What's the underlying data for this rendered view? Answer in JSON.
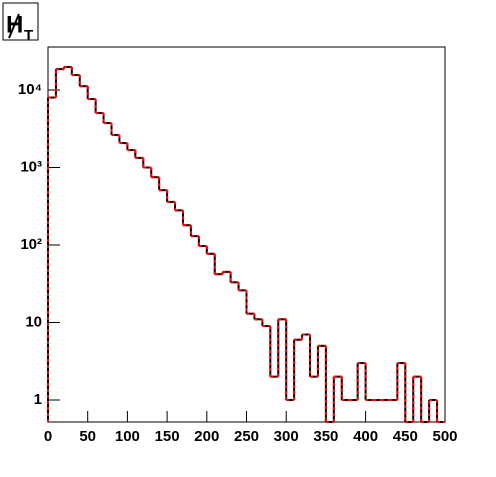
{
  "chart_data": {
    "type": "histogram",
    "title": {
      "main": "H",
      "subscript": "T"
    },
    "bins": [
      0,
      10,
      20,
      30,
      40,
      50,
      60,
      70,
      80,
      90,
      100,
      110,
      120,
      130,
      140,
      150,
      160,
      170,
      180,
      190,
      200,
      210,
      220,
      230,
      240,
      250,
      260,
      270,
      280,
      290,
      300,
      310,
      320,
      330,
      340,
      350,
      360,
      370,
      380,
      390,
      400,
      410,
      420,
      430,
      440,
      450,
      460,
      470,
      480,
      490,
      500
    ],
    "series": [
      {
        "color": "#000000",
        "values": [
          8000,
          18600,
          19800,
          15600,
          11200,
          7650,
          5050,
          3750,
          2630,
          2070,
          1680,
          1330,
          1000,
          750,
          510,
          360,
          280,
          180,
          130,
          97,
          77,
          42,
          45,
          33,
          26,
          13,
          11,
          9,
          2,
          11,
          1,
          6,
          7,
          2,
          5,
          0,
          2,
          1,
          1,
          3,
          1,
          1,
          1,
          1,
          3,
          0,
          2,
          0,
          1,
          0
        ]
      },
      {
        "color": "#ff0000",
        "dashed": true,
        "values": [
          8000,
          18600,
          19800,
          15600,
          11200,
          7650,
          5050,
          3750,
          2630,
          2070,
          1680,
          1330,
          1000,
          750,
          510,
          360,
          280,
          180,
          130,
          97,
          77,
          42,
          45,
          33,
          26,
          13,
          11,
          9,
          2,
          11,
          1,
          6,
          7,
          2,
          5,
          0,
          2,
          1,
          1,
          3,
          1,
          1,
          1,
          1,
          3,
          0,
          2,
          0,
          1,
          0
        ]
      }
    ],
    "xlim": [
      0,
      500
    ],
    "xticks": [
      0,
      50,
      100,
      150,
      200,
      250,
      300,
      350,
      400,
      450,
      500
    ],
    "ylim": [
      0.52,
      35900
    ],
    "log_y": true,
    "yticks": [
      1,
      10,
      {
        "value": 100,
        "label": "10²"
      },
      {
        "value": 1000,
        "label": "10³"
      },
      {
        "value": 10000,
        "label": "10⁴"
      }
    ]
  }
}
